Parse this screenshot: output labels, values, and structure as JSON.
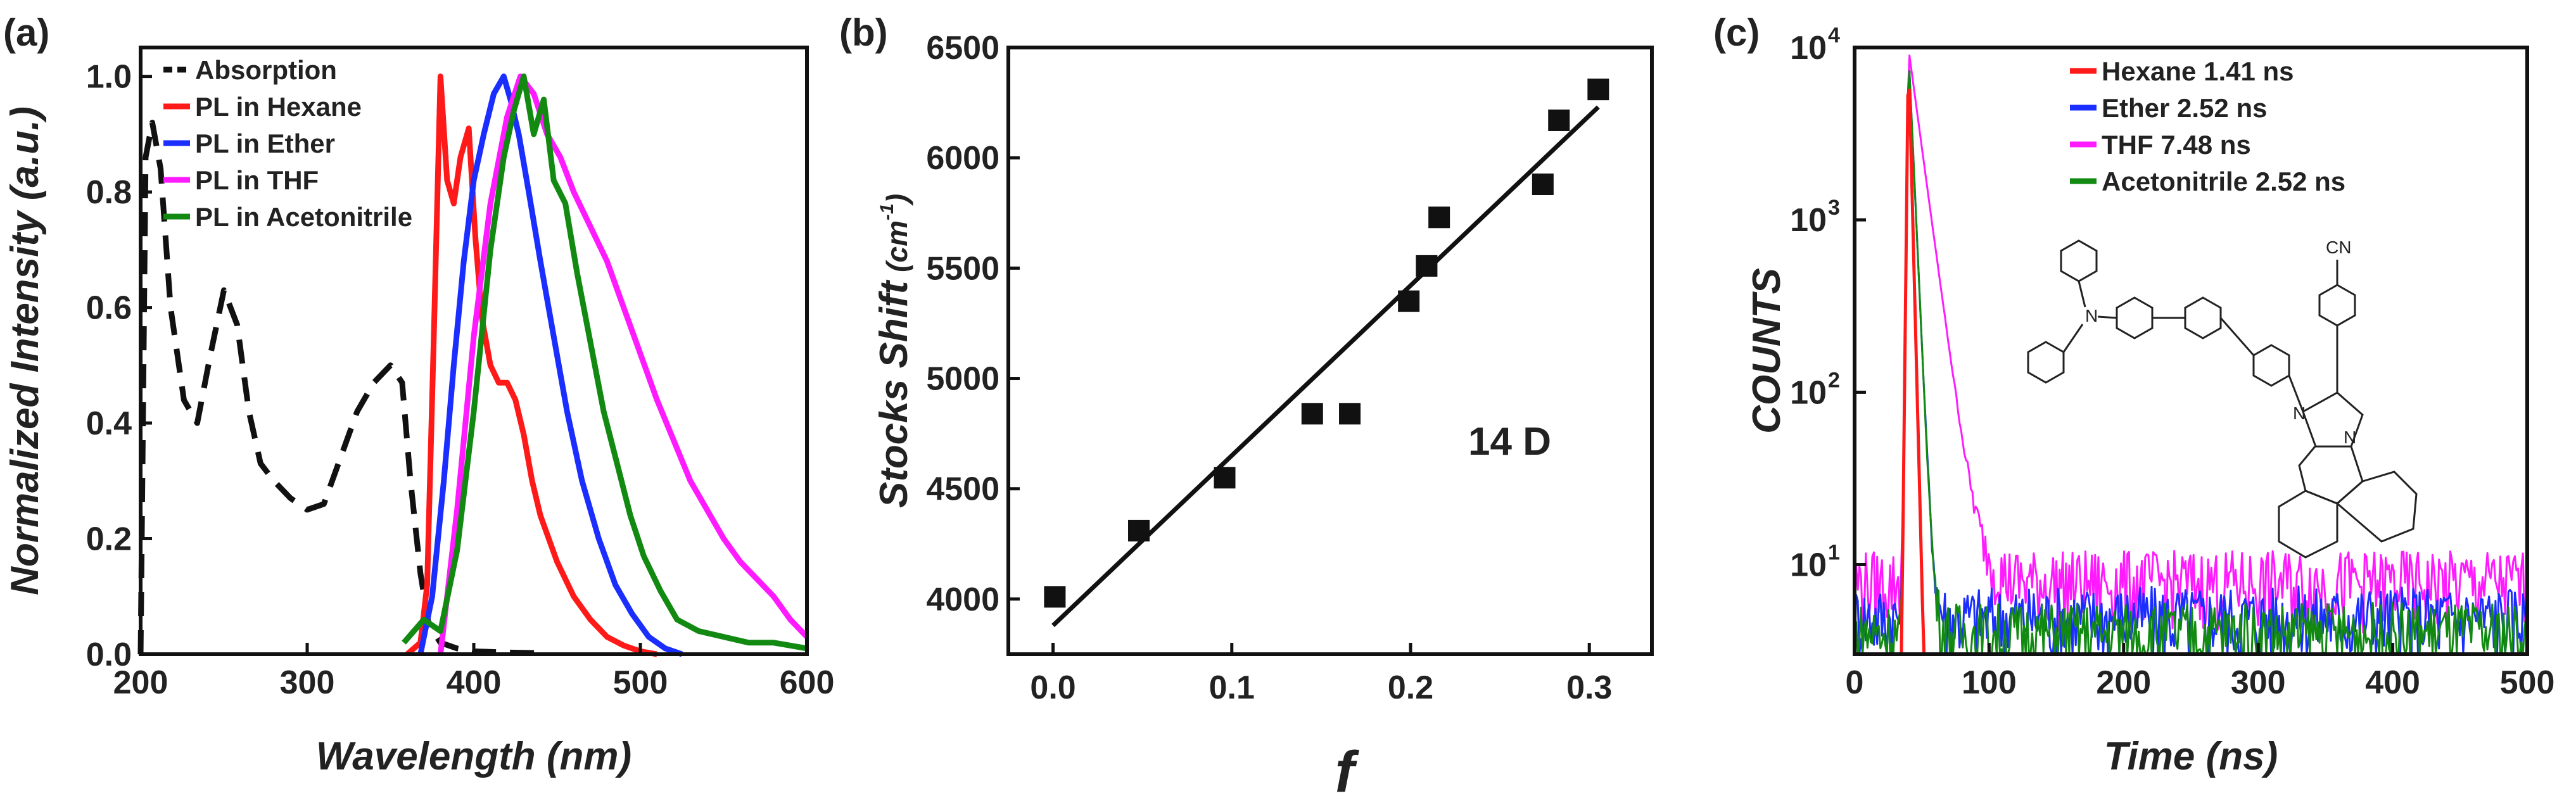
{
  "chart_data": [
    {
      "panel": "(a)",
      "type": "line",
      "xlabel": "Wavelength (nm)",
      "ylabel": "Normalized Intensity (a.u.)",
      "xlim": [
        200,
        600
      ],
      "ylim": [
        0,
        1.05
      ],
      "xticks": [
        "200",
        "300",
        "400",
        "500",
        "600"
      ],
      "yticks": [
        "0.0",
        "0.2",
        "0.4",
        "0.6",
        "0.8",
        "1.0"
      ],
      "legend_position": "top-left",
      "series": [
        {
          "name": "Absorption",
          "color": "#111111",
          "dash": true,
          "x": [
            200,
            203,
            207,
            212,
            218,
            226,
            234,
            242,
            250,
            258,
            265,
            272,
            280,
            290,
            300,
            310,
            320,
            330,
            340,
            350,
            357,
            362,
            368,
            373,
            380,
            390,
            400,
            420,
            440
          ],
          "y": [
            0.0,
            0.86,
            0.92,
            0.84,
            0.6,
            0.44,
            0.4,
            0.52,
            0.63,
            0.57,
            0.42,
            0.33,
            0.3,
            0.27,
            0.25,
            0.26,
            0.34,
            0.42,
            0.47,
            0.5,
            0.47,
            0.3,
            0.14,
            0.05,
            0.02,
            0.01,
            0.005,
            0.003,
            0.002
          ]
        },
        {
          "name": "PL in Hexane",
          "color": "#ff1a1a",
          "dash": false,
          "x": [
            360,
            368,
            372,
            376,
            380,
            384,
            388,
            392,
            397,
            401,
            405,
            410,
            415,
            420,
            425,
            430,
            435,
            440,
            450,
            460,
            470,
            480,
            490,
            500,
            510
          ],
          "y": [
            0.0,
            0.02,
            0.12,
            0.55,
            1.0,
            0.82,
            0.78,
            0.86,
            0.91,
            0.72,
            0.58,
            0.5,
            0.47,
            0.47,
            0.44,
            0.38,
            0.3,
            0.24,
            0.16,
            0.1,
            0.06,
            0.03,
            0.015,
            0.005,
            0.0
          ]
        },
        {
          "name": "PL in Ether",
          "color": "#1a2eff",
          "dash": false,
          "x": [
            368,
            375,
            382,
            388,
            394,
            400,
            406,
            412,
            418,
            422,
            427,
            433,
            440,
            448,
            456,
            465,
            475,
            485,
            495,
            505,
            515,
            525
          ],
          "y": [
            0.0,
            0.1,
            0.3,
            0.5,
            0.68,
            0.82,
            0.9,
            0.97,
            1.0,
            0.96,
            0.9,
            0.8,
            0.68,
            0.55,
            0.42,
            0.3,
            0.2,
            0.12,
            0.07,
            0.03,
            0.01,
            0.0
          ]
        },
        {
          "name": "PL in THF",
          "color": "#ff1aff",
          "dash": false,
          "x": [
            380,
            390,
            400,
            410,
            420,
            428,
            436,
            444,
            452,
            460,
            470,
            480,
            490,
            500,
            510,
            520,
            530,
            540,
            550,
            560,
            570,
            580,
            590,
            600
          ],
          "y": [
            0.0,
            0.25,
            0.55,
            0.78,
            0.93,
            1.0,
            0.97,
            0.9,
            0.86,
            0.8,
            0.74,
            0.68,
            0.6,
            0.52,
            0.44,
            0.37,
            0.3,
            0.25,
            0.2,
            0.16,
            0.13,
            0.1,
            0.06,
            0.03
          ]
        },
        {
          "name": "PL in Acetonitrile",
          "color": "#128a12",
          "dash": false,
          "x": [
            358,
            370,
            380,
            390,
            400,
            410,
            418,
            424,
            430,
            436,
            442,
            448,
            455,
            462,
            470,
            478,
            486,
            494,
            502,
            512,
            522,
            535,
            550,
            565,
            580,
            590,
            600
          ],
          "y": [
            0.02,
            0.06,
            0.04,
            0.18,
            0.42,
            0.7,
            0.86,
            0.94,
            1.0,
            0.9,
            0.96,
            0.82,
            0.78,
            0.66,
            0.54,
            0.42,
            0.33,
            0.24,
            0.17,
            0.11,
            0.06,
            0.04,
            0.03,
            0.02,
            0.02,
            0.015,
            0.01
          ]
        }
      ]
    },
    {
      "panel": "(b)",
      "type": "scatter",
      "xlabel": "f",
      "ylabel": "Stocks Shift (cm-1)",
      "ylabel_main": "Stocks Shift",
      "ylabel_unit": "(cm",
      "ylabel_sup": "-1",
      "ylabel_close": ")",
      "xlim": [
        -0.025,
        0.335
      ],
      "ylim": [
        3750,
        6500
      ],
      "xticks": [
        "0.0",
        "0.1",
        "0.2",
        "0.3"
      ],
      "yticks": [
        "4000",
        "4500",
        "5000",
        "5500",
        "6000",
        "6500"
      ],
      "annotation": "14 D",
      "points": [
        {
          "x": 0.001,
          "y": 4010
        },
        {
          "x": 0.048,
          "y": 4310
        },
        {
          "x": 0.096,
          "y": 4550
        },
        {
          "x": 0.145,
          "y": 4840
        },
        {
          "x": 0.166,
          "y": 4840
        },
        {
          "x": 0.199,
          "y": 5350
        },
        {
          "x": 0.209,
          "y": 5510
        },
        {
          "x": 0.216,
          "y": 5730
        },
        {
          "x": 0.274,
          "y": 5880
        },
        {
          "x": 0.283,
          "y": 6170
        },
        {
          "x": 0.305,
          "y": 6310
        }
      ],
      "fit_line": {
        "x": [
          0.0,
          0.305
        ],
        "y": [
          3880,
          6230
        ],
        "color": "#111111"
      }
    },
    {
      "panel": "(c)",
      "type": "line",
      "xlabel": "Time (ns)",
      "ylabel": "COUNTS",
      "xlim": [
        0,
        500
      ],
      "ylim_log": [
        0.48,
        4.0
      ],
      "yscale": "log",
      "xticks": [
        "0",
        "100",
        "200",
        "300",
        "400",
        "500"
      ],
      "yticks_base": "10",
      "yticks_exp": [
        "1",
        "2",
        "3",
        "4"
      ],
      "legend_position": "top-right",
      "structure_label": "CN",
      "series": [
        {
          "name": "Hexane 1.41 ns",
          "color": "#ff1a1a",
          "peak_x": 40,
          "tau": 1.41,
          "floor": 0.01,
          "end_x": 58
        },
        {
          "name": "Ether 2.52 ns",
          "color": "#1a2eff",
          "peak_x": 40,
          "tau": 2.52,
          "floor": 5,
          "end_x": 500
        },
        {
          "name": "THF 7.48 ns",
          "color": "#ff1aff",
          "peak_x": 40,
          "tau": 7.48,
          "floor": 8,
          "end_x": 500
        },
        {
          "name": "Acetonitrile 2.52 ns",
          "color": "#128a12",
          "peak_x": 40,
          "tau": 2.52,
          "floor": 4,
          "end_x": 500
        }
      ]
    }
  ]
}
